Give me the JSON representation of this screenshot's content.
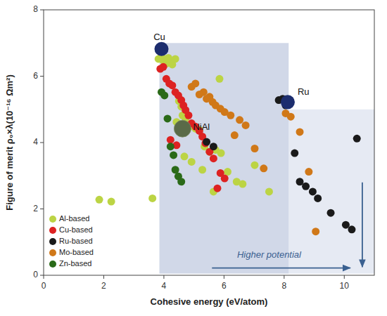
{
  "chart_data": {
    "type": "scatter",
    "xlabel": "Cohesive energy (eV/atom)",
    "ylabel": "Figure of merit ρ₀×λ(10⁻¹⁶ Ωm²)",
    "xlim": [
      0,
      11
    ],
    "ylim": [
      0,
      8
    ],
    "xticks": [
      0,
      2,
      4,
      6,
      8,
      10
    ],
    "yticks": [
      0,
      2,
      4,
      6,
      8
    ],
    "grid": false,
    "legend": "lower left",
    "series": [
      {
        "name": "Al-based",
        "color": "#bcd444",
        "x": [
          3.82,
          3.92,
          3.97,
          4.08,
          4.15,
          4.22,
          4.28,
          4.38,
          4.5,
          4.58,
          4.62,
          4.72,
          4.85,
          5.05,
          5.18,
          5.35,
          5.52,
          5.72,
          5.9,
          6.12,
          6.42,
          6.62,
          7.02,
          7.5,
          3.62,
          1.85,
          2.25,
          4.42,
          4.68,
          4.92,
          5.28,
          5.65,
          5.85
        ],
        "values": [
          6.52,
          6.62,
          6.48,
          6.38,
          6.55,
          6.42,
          6.35,
          6.52,
          5.25,
          5.08,
          4.82,
          4.72,
          4.48,
          4.42,
          4.38,
          3.88,
          3.72,
          3.78,
          3.68,
          3.12,
          2.82,
          2.75,
          3.32,
          2.52,
          2.32,
          2.28,
          2.22,
          4.62,
          3.58,
          3.42,
          3.18,
          2.52,
          5.92
        ]
      },
      {
        "name": "Cu-based",
        "color": "#dd2222",
        "x": [
          3.88,
          3.98,
          4.08,
          4.18,
          4.28,
          4.38,
          4.48,
          4.58,
          4.65,
          4.72,
          4.82,
          4.92,
          5.05,
          5.18,
          5.28,
          5.38,
          5.52,
          5.65,
          5.78,
          6.02,
          4.22,
          4.42,
          5.88
        ],
        "values": [
          6.22,
          6.28,
          5.92,
          5.78,
          5.72,
          5.52,
          5.42,
          5.28,
          5.12,
          4.98,
          4.82,
          4.58,
          4.48,
          4.35,
          4.18,
          3.98,
          3.72,
          3.52,
          2.62,
          2.92,
          4.08,
          3.92,
          3.08
        ]
      },
      {
        "name": "Ru-based",
        "color": "#1a1a1a",
        "x": [
          5.42,
          5.65,
          7.82,
          7.95,
          8.05,
          8.35,
          8.52,
          8.72,
          8.95,
          9.12,
          9.55,
          10.05,
          10.25,
          10.42
        ],
        "values": [
          4.02,
          3.88,
          5.28,
          5.32,
          5.12,
          3.68,
          2.82,
          2.68,
          2.52,
          2.32,
          1.88,
          1.52,
          1.38,
          4.12
        ]
      },
      {
        "name": "Mo-based",
        "color": "#d07818",
        "x": [
          5.05,
          5.32,
          5.52,
          5.62,
          5.72,
          5.88,
          6.02,
          6.22,
          6.52,
          6.72,
          7.02,
          7.32,
          4.92,
          5.18,
          5.42,
          6.35,
          8.05,
          8.22,
          8.52,
          8.82,
          9.05
        ],
        "values": [
          5.78,
          5.52,
          5.38,
          5.22,
          5.12,
          5.02,
          4.92,
          4.82,
          4.68,
          4.52,
          3.82,
          3.22,
          5.68,
          5.45,
          5.32,
          4.22,
          4.88,
          4.78,
          4.32,
          3.12,
          1.32
        ]
      },
      {
        "name": "Zn-based",
        "color": "#2a6a18",
        "x": [
          3.92,
          4.02,
          4.12,
          4.22,
          4.32,
          4.38,
          4.48,
          4.58
        ],
        "values": [
          5.52,
          5.42,
          4.72,
          3.88,
          3.62,
          3.18,
          2.98,
          2.82
        ]
      }
    ],
    "highlighted_points": [
      {
        "label": "Cu",
        "x": 3.92,
        "y": 6.82,
        "color": "#1c2d6e"
      },
      {
        "label": "Ru",
        "x": 8.12,
        "y": 5.22,
        "color": "#1c2d6e"
      },
      {
        "label": "NiAl",
        "x": 4.62,
        "y": 4.42,
        "color": "#5a6a48"
      }
    ],
    "regions": [
      {
        "x": [
          3.85,
          8.15
        ],
        "y": [
          0.05,
          7.0
        ],
        "color": "#9aa8cc"
      },
      {
        "x": [
          8.15,
          11.0
        ],
        "y": [
          0.05,
          5.0
        ],
        "color": "#b8c4dc"
      }
    ],
    "arrows": [
      {
        "x": [
          5.6,
          10.2
        ],
        "y": [
          0.22,
          0.22
        ],
        "color": "#3a6090"
      },
      {
        "x": [
          10.6,
          10.6
        ],
        "y": [
          2.8,
          0.25
        ],
        "color": "#3a6090"
      }
    ],
    "annotations": [
      {
        "text": "Higher potential",
        "x": 7.5,
        "y": 0.52,
        "color": "#3a6090"
      }
    ]
  }
}
